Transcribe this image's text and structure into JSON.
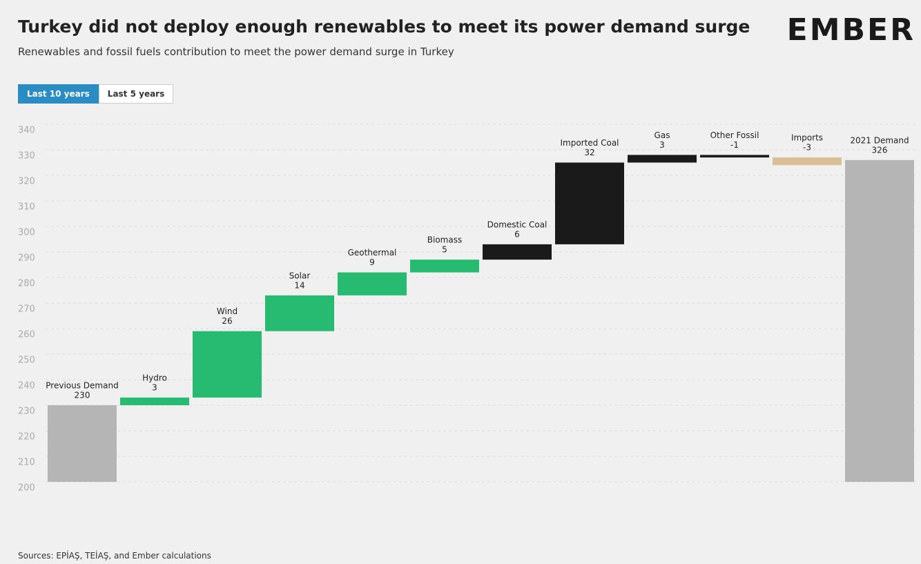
{
  "header": {
    "logo": "EMBER",
    "buttons": [
      "Last 10 years",
      "Last 5 years"
    ],
    "active_button": 0
  },
  "chart_data": {
    "type": "waterfall",
    "title": "Turkey did not deploy enough renewables to meet its power demand surge",
    "subtitle": "Renewables and fossil fuels contribution to meet the power demand surge in Turkey",
    "categories": [
      "Previous Demand",
      "Hydro",
      "Wind",
      "Solar",
      "Geothermal",
      "Biomass",
      "Domestic Coal",
      "Imported Coal",
      "Gas",
      "Other Fossil",
      "Imports",
      "2021 Demand"
    ],
    "values": [
      230,
      3,
      26,
      14,
      9,
      5,
      6,
      32,
      3,
      -1,
      -3,
      326
    ],
    "measures": [
      "absolute",
      "relative",
      "relative",
      "relative",
      "relative",
      "relative",
      "relative",
      "relative",
      "relative",
      "relative",
      "relative",
      "absolute"
    ],
    "colors": [
      "#b5b5b5",
      "#27bb72",
      "#27bb72",
      "#27bb72",
      "#27bb72",
      "#27bb72",
      "#1a1a1a",
      "#1a1a1a",
      "#1a1a1a",
      "#1a1a1a",
      "#d9bf96",
      "#b5b5b5"
    ],
    "ylim": [
      200,
      340
    ],
    "yticks": [
      200,
      210,
      220,
      230,
      240,
      250,
      260,
      270,
      280,
      290,
      300,
      310,
      320,
      330,
      340
    ],
    "grid": true,
    "source": "Sources: EPİAŞ, TEİAŞ, and Ember calculations"
  }
}
